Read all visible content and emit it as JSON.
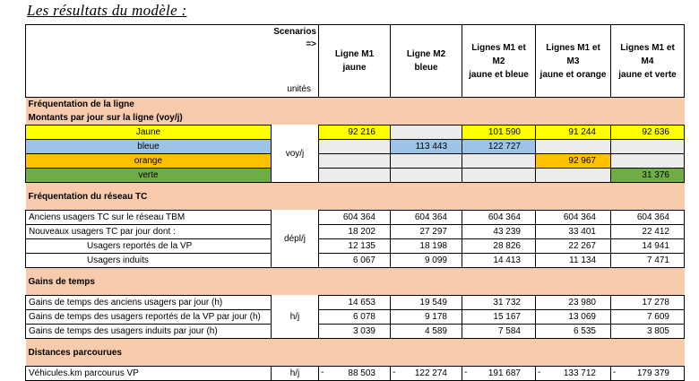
{
  "title": "Les résultats du modèle :",
  "header": {
    "scenarios": "Scenarios",
    "arrow": "=>",
    "units": "unités",
    "columns": [
      {
        "line1": "Ligne M1",
        "line2": "jaune"
      },
      {
        "line1": "Ligne M2",
        "line2": "bleue"
      },
      {
        "line1": "Lignes M1 et M2",
        "line2": "jaune et bleue"
      },
      {
        "line1": "Lignes M1 et M3",
        "line2": "jaune et orange"
      },
      {
        "line1": "Lignes M1 et M4",
        "line2": "jaune et verte"
      }
    ]
  },
  "freq_ligne": {
    "section": "Fréquentation de la ligne",
    "subsection": "Montants par jour sur la ligne (voy/j)",
    "unit": "voy/j",
    "rows": [
      {
        "label": "Jaune",
        "values": [
          "92 216",
          "",
          "101 590",
          "91 244",
          "92 636"
        ]
      },
      {
        "label": "bleue",
        "values": [
          "",
          "113 443",
          "122 727",
          "",
          ""
        ]
      },
      {
        "label": "orange",
        "values": [
          "",
          "",
          "",
          "92 967",
          ""
        ]
      },
      {
        "label": "verte",
        "values": [
          "",
          "",
          "",
          "",
          "31 376"
        ]
      }
    ]
  },
  "freq_reseau": {
    "section": "Fréquentation du réseau TC",
    "unit": "dépl/j",
    "rows": [
      {
        "label": "Anciens usagers TC sur le réseau TBM",
        "values": [
          "604 364",
          "604 364",
          "604 364",
          "604 364",
          "604 364"
        ]
      },
      {
        "label": "Nouveaux usagers TC par jour dont :",
        "values": [
          "18 202",
          "27 297",
          "43 239",
          "33 401",
          "22 412"
        ]
      },
      {
        "label": "Usagers reportés de la VP",
        "values": [
          "12 135",
          "18 198",
          "28 826",
          "22 267",
          "14 941"
        ]
      },
      {
        "label": "Usagers induits",
        "values": [
          "6 067",
          "9 099",
          "14 413",
          "11 134",
          "7 471"
        ]
      }
    ]
  },
  "gains": {
    "section": "Gains de temps",
    "unit": "h/j",
    "rows": [
      {
        "label": "Gains de temps des anciens usagers par jour (h)",
        "values": [
          "14 653",
          "19 549",
          "31 732",
          "23 980",
          "17 278"
        ]
      },
      {
        "label": "Gains de temps des usagers reportés de la VP par jour (h)",
        "values": [
          "6 078",
          "9 178",
          "15 167",
          "13 069",
          "7 609"
        ]
      },
      {
        "label": "Gains de temps des usagers induits par jour (h)",
        "values": [
          "3 039",
          "4 589",
          "7 584",
          "6 535",
          "3 805"
        ]
      }
    ]
  },
  "distances": {
    "section": "Distances parcourues",
    "unit": "h/j",
    "rows": [
      {
        "label": "Véhicules.km parcourus VP",
        "dash": "-",
        "values": [
          "88 503",
          "122 274",
          "191 687",
          "133 712",
          "179 379"
        ]
      }
    ]
  },
  "colors": {
    "section": "#f8cbad",
    "yellow": "#ffff00",
    "blue": "#9dc3e6",
    "orange": "#ffc000",
    "green": "#70ad47",
    "empty": "#ececec"
  }
}
